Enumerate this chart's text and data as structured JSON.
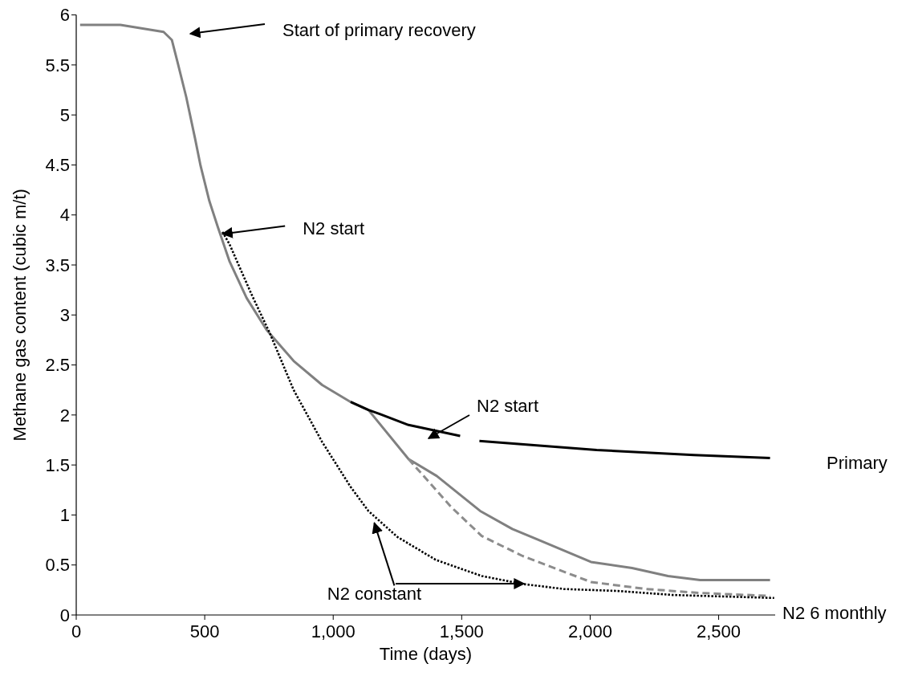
{
  "chart_data": {
    "type": "line",
    "xlabel": "Time (days)",
    "ylabel": "Methane gas content (cubic m/t)",
    "xlim": [
      0,
      2720
    ],
    "xticks": [
      0,
      500,
      {
        "value": 1000,
        "label": "1,000"
      },
      {
        "value": 1500,
        "label": "1,500"
      },
      {
        "value": 2000,
        "label": "2,000"
      },
      {
        "value": 2500,
        "label": "2,500"
      }
    ],
    "ylim": [
      0,
      6
    ],
    "yticks": [
      0,
      0.5,
      1,
      1.5,
      2,
      2.5,
      3,
      3.5,
      4,
      4.5,
      5,
      5.5,
      6
    ],
    "series": [
      {
        "color": "#808080",
        "line_style": "solid",
        "x": [
          15,
          172,
          340,
          372,
          395,
          428,
          462,
          484,
          518,
          551,
          596,
          663,
          741,
          846,
          957,
          1068,
          1137,
          1293,
          1403,
          1572,
          1697,
          1791,
          2003,
          2163,
          2303,
          2428,
          2700
        ],
        "values": [
          5.9,
          5.9,
          5.83,
          5.75,
          5.52,
          5.18,
          4.77,
          4.49,
          4.14,
          3.88,
          3.54,
          3.17,
          2.85,
          2.54,
          2.3,
          2.13,
          2.05,
          1.56,
          1.39,
          1.04,
          0.86,
          0.76,
          0.53,
          0.47,
          0.39,
          0.35,
          0.35
        ]
      },
      {
        "color": "#000000",
        "line_style": "solid",
        "x": [
          1068,
          1137,
          1181,
          1293,
          1494,
          1530,
          1569,
          2025,
          2403,
          2700
        ],
        "values": [
          2.13,
          2.05,
          2.01,
          1.9,
          1.79,
          null,
          1.74,
          1.65,
          1.6,
          1.57
        ]
      },
      {
        "color": "#8c8c8c",
        "line_style": "dashed",
        "x": [
          1293,
          1459,
          1578,
          1737,
          2003,
          2216,
          2428,
          2700
        ],
        "values": [
          1.56,
          1.08,
          0.79,
          0.59,
          0.33,
          0.26,
          0.22,
          0.19
        ]
      },
      {
        "color": "#000000",
        "line_style": "dotted",
        "x": [
          569,
          596,
          685,
          753,
          846,
          957,
          1068,
          1137,
          1250,
          1400,
          1578,
          1737,
          1897,
          2109,
          2322,
          2716
        ],
        "values": [
          3.83,
          3.71,
          3.19,
          2.82,
          2.25,
          1.73,
          1.28,
          1.04,
          0.78,
          0.55,
          0.39,
          0.31,
          0.26,
          0.24,
          0.2,
          0.17
        ]
      }
    ],
    "annotations": [
      "Start of primary recovery",
      {
        "text": "N2 start",
        "x": 569,
        "y": 3.81
      },
      "N2 start",
      "Primary",
      {
        "text": "N2 constant",
        "x": 1160,
        "y": 0.92
      },
      "N2 6 monthly"
    ]
  }
}
